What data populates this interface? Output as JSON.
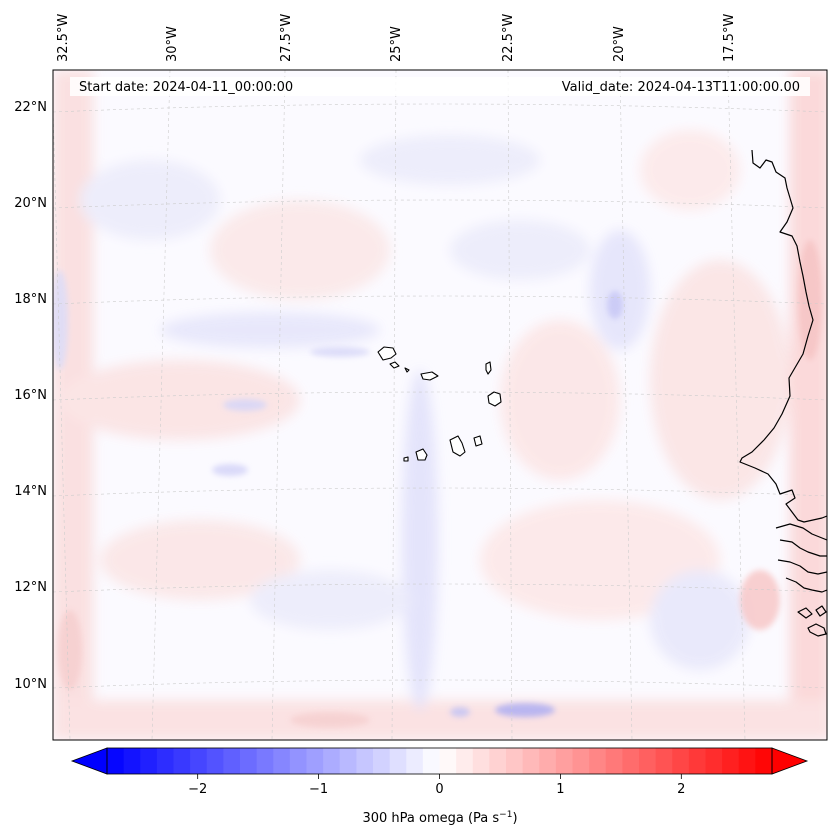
{
  "map": {
    "header": {
      "start_date": "Start date: 2024-04-11_00:00:00",
      "valid_date": "Valid_date: 2024-04-13T11:00:00.00"
    },
    "lon_labels": [
      "32.5°W",
      "30°W",
      "27.5°W",
      "25°W",
      "22.5°W",
      "20°W",
      "17.5°W"
    ],
    "lat_labels": [
      "22°N",
      "20°N",
      "18°N",
      "16°N",
      "14°N",
      "12°N",
      "10°N"
    ],
    "colormap": [
      "#0000ff",
      "#ffffff",
      "#ff0000"
    ],
    "gridlines": true,
    "coastline_color": "#000000"
  },
  "colorbar": {
    "ticks": [
      "−2",
      "−1",
      "0",
      "1",
      "2"
    ],
    "tick_values": [
      -2,
      -1,
      0,
      1,
      2
    ],
    "range": [
      -2.75,
      2.75
    ],
    "label_prefix": "300 hPa omega (Pa s",
    "label_exp": "−1",
    "label_suffix": ")",
    "extend": "both"
  }
}
